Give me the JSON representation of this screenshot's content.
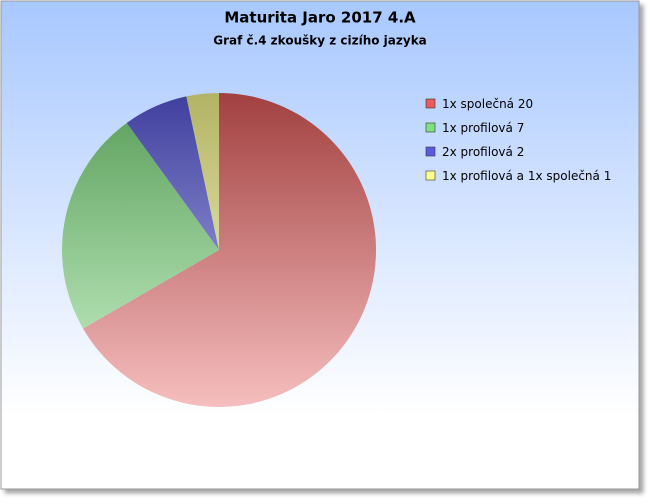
{
  "chart_data": {
    "type": "pie",
    "title": "Maturita Jaro 2017 4.A",
    "subtitle": "Graf č.4 zkoušky z cizího jazyka",
    "categories": [
      "1x společná",
      "1x profilová",
      "2x profilová",
      "1x profilová a 1x společná"
    ],
    "values": [
      20,
      7,
      2,
      1
    ],
    "colors": [
      "#e85c5c",
      "#7ee07e",
      "#5a5ae0",
      "#ffff90"
    ],
    "legend": "right"
  }
}
